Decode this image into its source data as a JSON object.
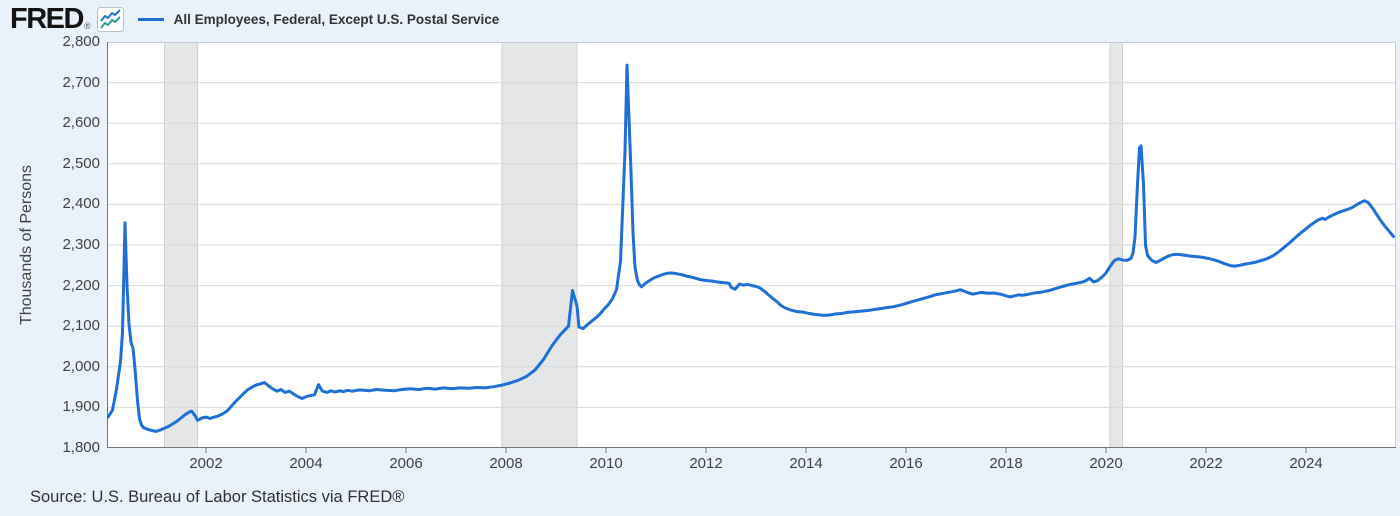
{
  "header": {
    "logo_text": "FRED",
    "logo_reg": "®",
    "legend_label": "All Employees, Federal, Except U.S. Postal Service"
  },
  "footer": {
    "source": "Source: U.S. Bureau of Labor Statistics via FRED®"
  },
  "chart_data": {
    "type": "line",
    "title": "All Employees, Federal, Except U.S. Postal Service",
    "xlabel": "",
    "ylabel": "Thousands of Persons",
    "x_range": [
      2000.02,
      2025.8
    ],
    "y_range": [
      1800,
      2800
    ],
    "y_ticks": [
      1800,
      1900,
      2000,
      2100,
      2200,
      2300,
      2400,
      2500,
      2600,
      2700,
      2800
    ],
    "x_ticks": [
      2002,
      2004,
      2006,
      2008,
      2010,
      2012,
      2014,
      2016,
      2018,
      2020,
      2022,
      2024
    ],
    "grid": "horizontal-only",
    "legend_position": "top-left",
    "recession_bands": [
      [
        2001.17,
        2001.83
      ],
      [
        2007.92,
        2009.42
      ],
      [
        2020.08,
        2020.33
      ]
    ],
    "colors": {
      "page_bg": "#e9f1fa",
      "plot_bg": "#ffffff",
      "grid": "#d9d9d9",
      "plot_border": "#cccccc",
      "axis": "#767676",
      "recession_band": "#e4e6e8",
      "recession_edge": "#cfd1d3",
      "tick_text": "#444444",
      "line": "#1f6fd4",
      "logo_blue": "#2478cc",
      "logo_teal": "#2e9e97"
    },
    "series": [
      {
        "name": "All Employees, Federal, Except U.S. Postal Service",
        "color": "#1f6fd4",
        "points": [
          [
            2000.04,
            1876
          ],
          [
            2000.13,
            1893
          ],
          [
            2000.21,
            1945
          ],
          [
            2000.29,
            2013
          ],
          [
            2000.33,
            2085
          ],
          [
            2000.38,
            2355
          ],
          [
            2000.42,
            2200
          ],
          [
            2000.46,
            2105
          ],
          [
            2000.5,
            2060
          ],
          [
            2000.54,
            2046
          ],
          [
            2000.58,
            1995
          ],
          [
            2000.63,
            1917
          ],
          [
            2000.67,
            1872
          ],
          [
            2000.71,
            1857
          ],
          [
            2000.75,
            1850
          ],
          [
            2000.83,
            1846
          ],
          [
            2000.92,
            1843
          ],
          [
            2001.0,
            1841
          ],
          [
            2001.08,
            1844
          ],
          [
            2001.17,
            1849
          ],
          [
            2001.25,
            1853
          ],
          [
            2001.33,
            1859
          ],
          [
            2001.42,
            1866
          ],
          [
            2001.5,
            1874
          ],
          [
            2001.58,
            1882
          ],
          [
            2001.67,
            1889
          ],
          [
            2001.71,
            1891
          ],
          [
            2001.79,
            1878
          ],
          [
            2001.83,
            1868
          ],
          [
            2001.92,
            1874
          ],
          [
            2002.0,
            1876
          ],
          [
            2002.08,
            1873
          ],
          [
            2002.17,
            1876
          ],
          [
            2002.25,
            1879
          ],
          [
            2002.33,
            1884
          ],
          [
            2002.42,
            1891
          ],
          [
            2002.5,
            1902
          ],
          [
            2002.58,
            1913
          ],
          [
            2002.67,
            1924
          ],
          [
            2002.75,
            1934
          ],
          [
            2002.83,
            1943
          ],
          [
            2002.92,
            1950
          ],
          [
            2003.0,
            1955
          ],
          [
            2003.08,
            1958
          ],
          [
            2003.17,
            1961
          ],
          [
            2003.25,
            1953
          ],
          [
            2003.33,
            1946
          ],
          [
            2003.42,
            1940
          ],
          [
            2003.5,
            1944
          ],
          [
            2003.58,
            1937
          ],
          [
            2003.67,
            1940
          ],
          [
            2003.75,
            1933
          ],
          [
            2003.83,
            1927
          ],
          [
            2003.92,
            1922
          ],
          [
            2004.0,
            1926
          ],
          [
            2004.08,
            1929
          ],
          [
            2004.17,
            1931
          ],
          [
            2004.25,
            1956
          ],
          [
            2004.33,
            1940
          ],
          [
            2004.42,
            1937
          ],
          [
            2004.5,
            1941
          ],
          [
            2004.58,
            1938
          ],
          [
            2004.67,
            1941
          ],
          [
            2004.75,
            1939
          ],
          [
            2004.83,
            1942
          ],
          [
            2004.92,
            1940
          ],
          [
            2005.08,
            1943
          ],
          [
            2005.25,
            1941
          ],
          [
            2005.42,
            1944
          ],
          [
            2005.58,
            1942
          ],
          [
            2005.75,
            1941
          ],
          [
            2005.92,
            1944
          ],
          [
            2006.08,
            1946
          ],
          [
            2006.25,
            1944
          ],
          [
            2006.42,
            1947
          ],
          [
            2006.58,
            1945
          ],
          [
            2006.75,
            1948
          ],
          [
            2006.92,
            1946
          ],
          [
            2007.08,
            1948
          ],
          [
            2007.25,
            1947
          ],
          [
            2007.42,
            1949
          ],
          [
            2007.58,
            1948
          ],
          [
            2007.75,
            1951
          ],
          [
            2007.92,
            1955
          ],
          [
            2008.08,
            1960
          ],
          [
            2008.25,
            1967
          ],
          [
            2008.42,
            1977
          ],
          [
            2008.58,
            1992
          ],
          [
            2008.75,
            2018
          ],
          [
            2008.92,
            2052
          ],
          [
            2009.08,
            2078
          ],
          [
            2009.17,
            2090
          ],
          [
            2009.25,
            2100
          ],
          [
            2009.33,
            2188
          ],
          [
            2009.42,
            2150
          ],
          [
            2009.46,
            2098
          ],
          [
            2009.54,
            2094
          ],
          [
            2009.63,
            2104
          ],
          [
            2009.71,
            2112
          ],
          [
            2009.79,
            2120
          ],
          [
            2009.88,
            2130
          ],
          [
            2009.96,
            2142
          ],
          [
            2010.04,
            2152
          ],
          [
            2010.13,
            2168
          ],
          [
            2010.21,
            2190
          ],
          [
            2010.29,
            2260
          ],
          [
            2010.38,
            2530
          ],
          [
            2010.42,
            2743
          ],
          [
            2010.5,
            2480
          ],
          [
            2010.54,
            2330
          ],
          [
            2010.58,
            2245
          ],
          [
            2010.63,
            2212
          ],
          [
            2010.67,
            2202
          ],
          [
            2010.71,
            2197
          ],
          [
            2010.79,
            2206
          ],
          [
            2010.88,
            2213
          ],
          [
            2010.96,
            2219
          ],
          [
            2011.04,
            2223
          ],
          [
            2011.13,
            2227
          ],
          [
            2011.21,
            2230
          ],
          [
            2011.29,
            2231
          ],
          [
            2011.38,
            2230
          ],
          [
            2011.46,
            2228
          ],
          [
            2011.54,
            2226
          ],
          [
            2011.63,
            2223
          ],
          [
            2011.71,
            2221
          ],
          [
            2011.79,
            2218
          ],
          [
            2011.88,
            2215
          ],
          [
            2011.96,
            2213
          ],
          [
            2012.04,
            2212
          ],
          [
            2012.13,
            2211
          ],
          [
            2012.21,
            2209
          ],
          [
            2012.29,
            2208
          ],
          [
            2012.38,
            2207
          ],
          [
            2012.46,
            2206
          ],
          [
            2012.5,
            2196
          ],
          [
            2012.58,
            2191
          ],
          [
            2012.67,
            2204
          ],
          [
            2012.75,
            2201
          ],
          [
            2012.83,
            2203
          ],
          [
            2012.92,
            2200
          ],
          [
            2013.0,
            2198
          ],
          [
            2013.08,
            2194
          ],
          [
            2013.17,
            2186
          ],
          [
            2013.25,
            2177
          ],
          [
            2013.33,
            2169
          ],
          [
            2013.42,
            2160
          ],
          [
            2013.5,
            2151
          ],
          [
            2013.58,
            2145
          ],
          [
            2013.67,
            2141
          ],
          [
            2013.75,
            2138
          ],
          [
            2013.83,
            2136
          ],
          [
            2013.92,
            2135
          ],
          [
            2014.0,
            2133
          ],
          [
            2014.08,
            2131
          ],
          [
            2014.17,
            2129
          ],
          [
            2014.25,
            2128
          ],
          [
            2014.33,
            2127
          ],
          [
            2014.42,
            2127
          ],
          [
            2014.5,
            2128
          ],
          [
            2014.58,
            2130
          ],
          [
            2014.67,
            2131
          ],
          [
            2014.75,
            2132
          ],
          [
            2014.83,
            2134
          ],
          [
            2014.92,
            2135
          ],
          [
            2015.08,
            2137
          ],
          [
            2015.25,
            2139
          ],
          [
            2015.42,
            2142
          ],
          [
            2015.58,
            2145
          ],
          [
            2015.75,
            2148
          ],
          [
            2015.92,
            2153
          ],
          [
            2016.08,
            2159
          ],
          [
            2016.25,
            2165
          ],
          [
            2016.42,
            2171
          ],
          [
            2016.58,
            2177
          ],
          [
            2016.75,
            2181
          ],
          [
            2016.92,
            2185
          ],
          [
            2017.0,
            2187
          ],
          [
            2017.08,
            2190
          ],
          [
            2017.17,
            2186
          ],
          [
            2017.25,
            2182
          ],
          [
            2017.33,
            2179
          ],
          [
            2017.42,
            2181
          ],
          [
            2017.5,
            2183
          ],
          [
            2017.58,
            2182
          ],
          [
            2017.67,
            2181
          ],
          [
            2017.75,
            2182
          ],
          [
            2017.83,
            2180
          ],
          [
            2017.92,
            2178
          ],
          [
            2018.0,
            2175
          ],
          [
            2018.08,
            2172
          ],
          [
            2018.17,
            2175
          ],
          [
            2018.25,
            2177
          ],
          [
            2018.33,
            2176
          ],
          [
            2018.42,
            2178
          ],
          [
            2018.5,
            2180
          ],
          [
            2018.58,
            2182
          ],
          [
            2018.67,
            2183
          ],
          [
            2018.75,
            2185
          ],
          [
            2018.83,
            2187
          ],
          [
            2018.92,
            2190
          ],
          [
            2019.0,
            2193
          ],
          [
            2019.08,
            2196
          ],
          [
            2019.17,
            2199
          ],
          [
            2019.25,
            2202
          ],
          [
            2019.33,
            2204
          ],
          [
            2019.42,
            2206
          ],
          [
            2019.5,
            2208
          ],
          [
            2019.58,
            2211
          ],
          [
            2019.67,
            2218
          ],
          [
            2019.75,
            2209
          ],
          [
            2019.83,
            2212
          ],
          [
            2019.92,
            2221
          ],
          [
            2020.0,
            2231
          ],
          [
            2020.08,
            2247
          ],
          [
            2020.17,
            2262
          ],
          [
            2020.25,
            2266
          ],
          [
            2020.33,
            2263
          ],
          [
            2020.42,
            2262
          ],
          [
            2020.5,
            2267
          ],
          [
            2020.54,
            2280
          ],
          [
            2020.58,
            2320
          ],
          [
            2020.63,
            2450
          ],
          [
            2020.67,
            2540
          ],
          [
            2020.7,
            2544
          ],
          [
            2020.75,
            2450
          ],
          [
            2020.79,
            2300
          ],
          [
            2020.83,
            2274
          ],
          [
            2020.88,
            2267
          ],
          [
            2020.92,
            2262
          ],
          [
            2021.0,
            2257
          ],
          [
            2021.08,
            2262
          ],
          [
            2021.17,
            2268
          ],
          [
            2021.25,
            2273
          ],
          [
            2021.33,
            2276
          ],
          [
            2021.42,
            2277
          ],
          [
            2021.5,
            2276
          ],
          [
            2021.58,
            2275
          ],
          [
            2021.67,
            2273
          ],
          [
            2021.75,
            2272
          ],
          [
            2021.83,
            2271
          ],
          [
            2021.92,
            2270
          ],
          [
            2022.0,
            2268
          ],
          [
            2022.08,
            2266
          ],
          [
            2022.17,
            2263
          ],
          [
            2022.25,
            2260
          ],
          [
            2022.33,
            2256
          ],
          [
            2022.42,
            2252
          ],
          [
            2022.5,
            2249
          ],
          [
            2022.58,
            2248
          ],
          [
            2022.67,
            2250
          ],
          [
            2022.75,
            2252
          ],
          [
            2022.83,
            2254
          ],
          [
            2022.92,
            2256
          ],
          [
            2023.0,
            2258
          ],
          [
            2023.08,
            2261
          ],
          [
            2023.17,
            2264
          ],
          [
            2023.25,
            2268
          ],
          [
            2023.33,
            2273
          ],
          [
            2023.42,
            2280
          ],
          [
            2023.5,
            2288
          ],
          [
            2023.58,
            2296
          ],
          [
            2023.67,
            2305
          ],
          [
            2023.75,
            2314
          ],
          [
            2023.83,
            2323
          ],
          [
            2023.92,
            2332
          ],
          [
            2024.0,
            2340
          ],
          [
            2024.08,
            2348
          ],
          [
            2024.17,
            2356
          ],
          [
            2024.25,
            2362
          ],
          [
            2024.33,
            2366
          ],
          [
            2024.38,
            2363
          ],
          [
            2024.46,
            2369
          ],
          [
            2024.54,
            2374
          ],
          [
            2024.63,
            2379
          ],
          [
            2024.71,
            2383
          ],
          [
            2024.79,
            2386
          ],
          [
            2024.88,
            2390
          ],
          [
            2024.96,
            2395
          ],
          [
            2025.04,
            2401
          ],
          [
            2025.13,
            2407
          ],
          [
            2025.17,
            2409
          ],
          [
            2025.25,
            2404
          ],
          [
            2025.33,
            2391
          ],
          [
            2025.42,
            2374
          ],
          [
            2025.5,
            2359
          ],
          [
            2025.58,
            2346
          ],
          [
            2025.67,
            2333
          ],
          [
            2025.75,
            2321
          ]
        ]
      }
    ]
  }
}
